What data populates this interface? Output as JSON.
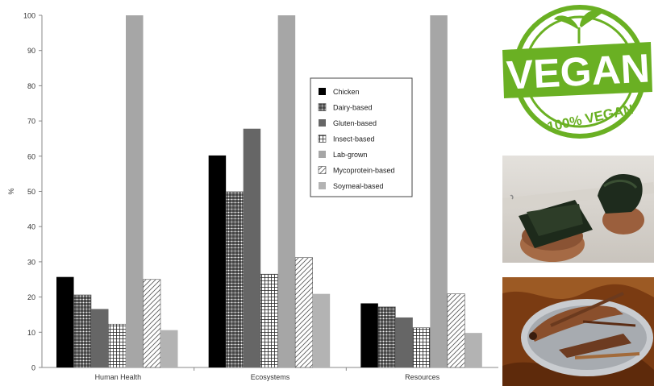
{
  "chart_data": {
    "type": "bar",
    "categories": [
      "Human Health",
      "Ecosystems",
      "Resources"
    ],
    "series": [
      {
        "name": "Chicken",
        "values": [
          25.7,
          60.2,
          18.2
        ]
      },
      {
        "name": "Dairy-based",
        "values": [
          20.6,
          49.9,
          17.2
        ]
      },
      {
        "name": "Gluten-based",
        "values": [
          16.6,
          67.8,
          14.2
        ]
      },
      {
        "name": "Insect-based",
        "values": [
          12.3,
          26.5,
          11.3
        ]
      },
      {
        "name": "Lab-grown",
        "values": [
          100,
          100,
          100
        ]
      },
      {
        "name": "Mycoprotein-based",
        "values": [
          25.0,
          31.2,
          20.9
        ]
      },
      {
        "name": "Soymeal-based",
        "values": [
          10.6,
          20.9,
          9.8
        ]
      }
    ],
    "ylabel": "%",
    "xlabel": "",
    "title": "",
    "ylim": [
      0,
      100
    ],
    "yticks": [
      0,
      10,
      20,
      30,
      40,
      50,
      60,
      70,
      80,
      90,
      100
    ],
    "grid": false,
    "legend": "center-right inside plot",
    "series_styles": [
      {
        "fill": "#000000",
        "pattern": "none"
      },
      {
        "fill": "#ffffff",
        "pattern": "dense-crosshatch"
      },
      {
        "fill": "#666666",
        "pattern": "none"
      },
      {
        "fill": "#ffffff",
        "pattern": "grid"
      },
      {
        "fill": "#a6a6a6",
        "pattern": "none"
      },
      {
        "fill": "#ffffff",
        "pattern": "diagonal"
      },
      {
        "fill": "#b3b3b3",
        "pattern": "none"
      }
    ]
  },
  "images": {
    "logo": {
      "main_text": "VEGAN",
      "ring_text": "100% VEGAN",
      "color": "#6ab023"
    },
    "seaweed": {
      "description_icon": "seaweed-snack-photo"
    },
    "insects": {
      "description_icon": "fried-grasshoppers-photo"
    }
  }
}
